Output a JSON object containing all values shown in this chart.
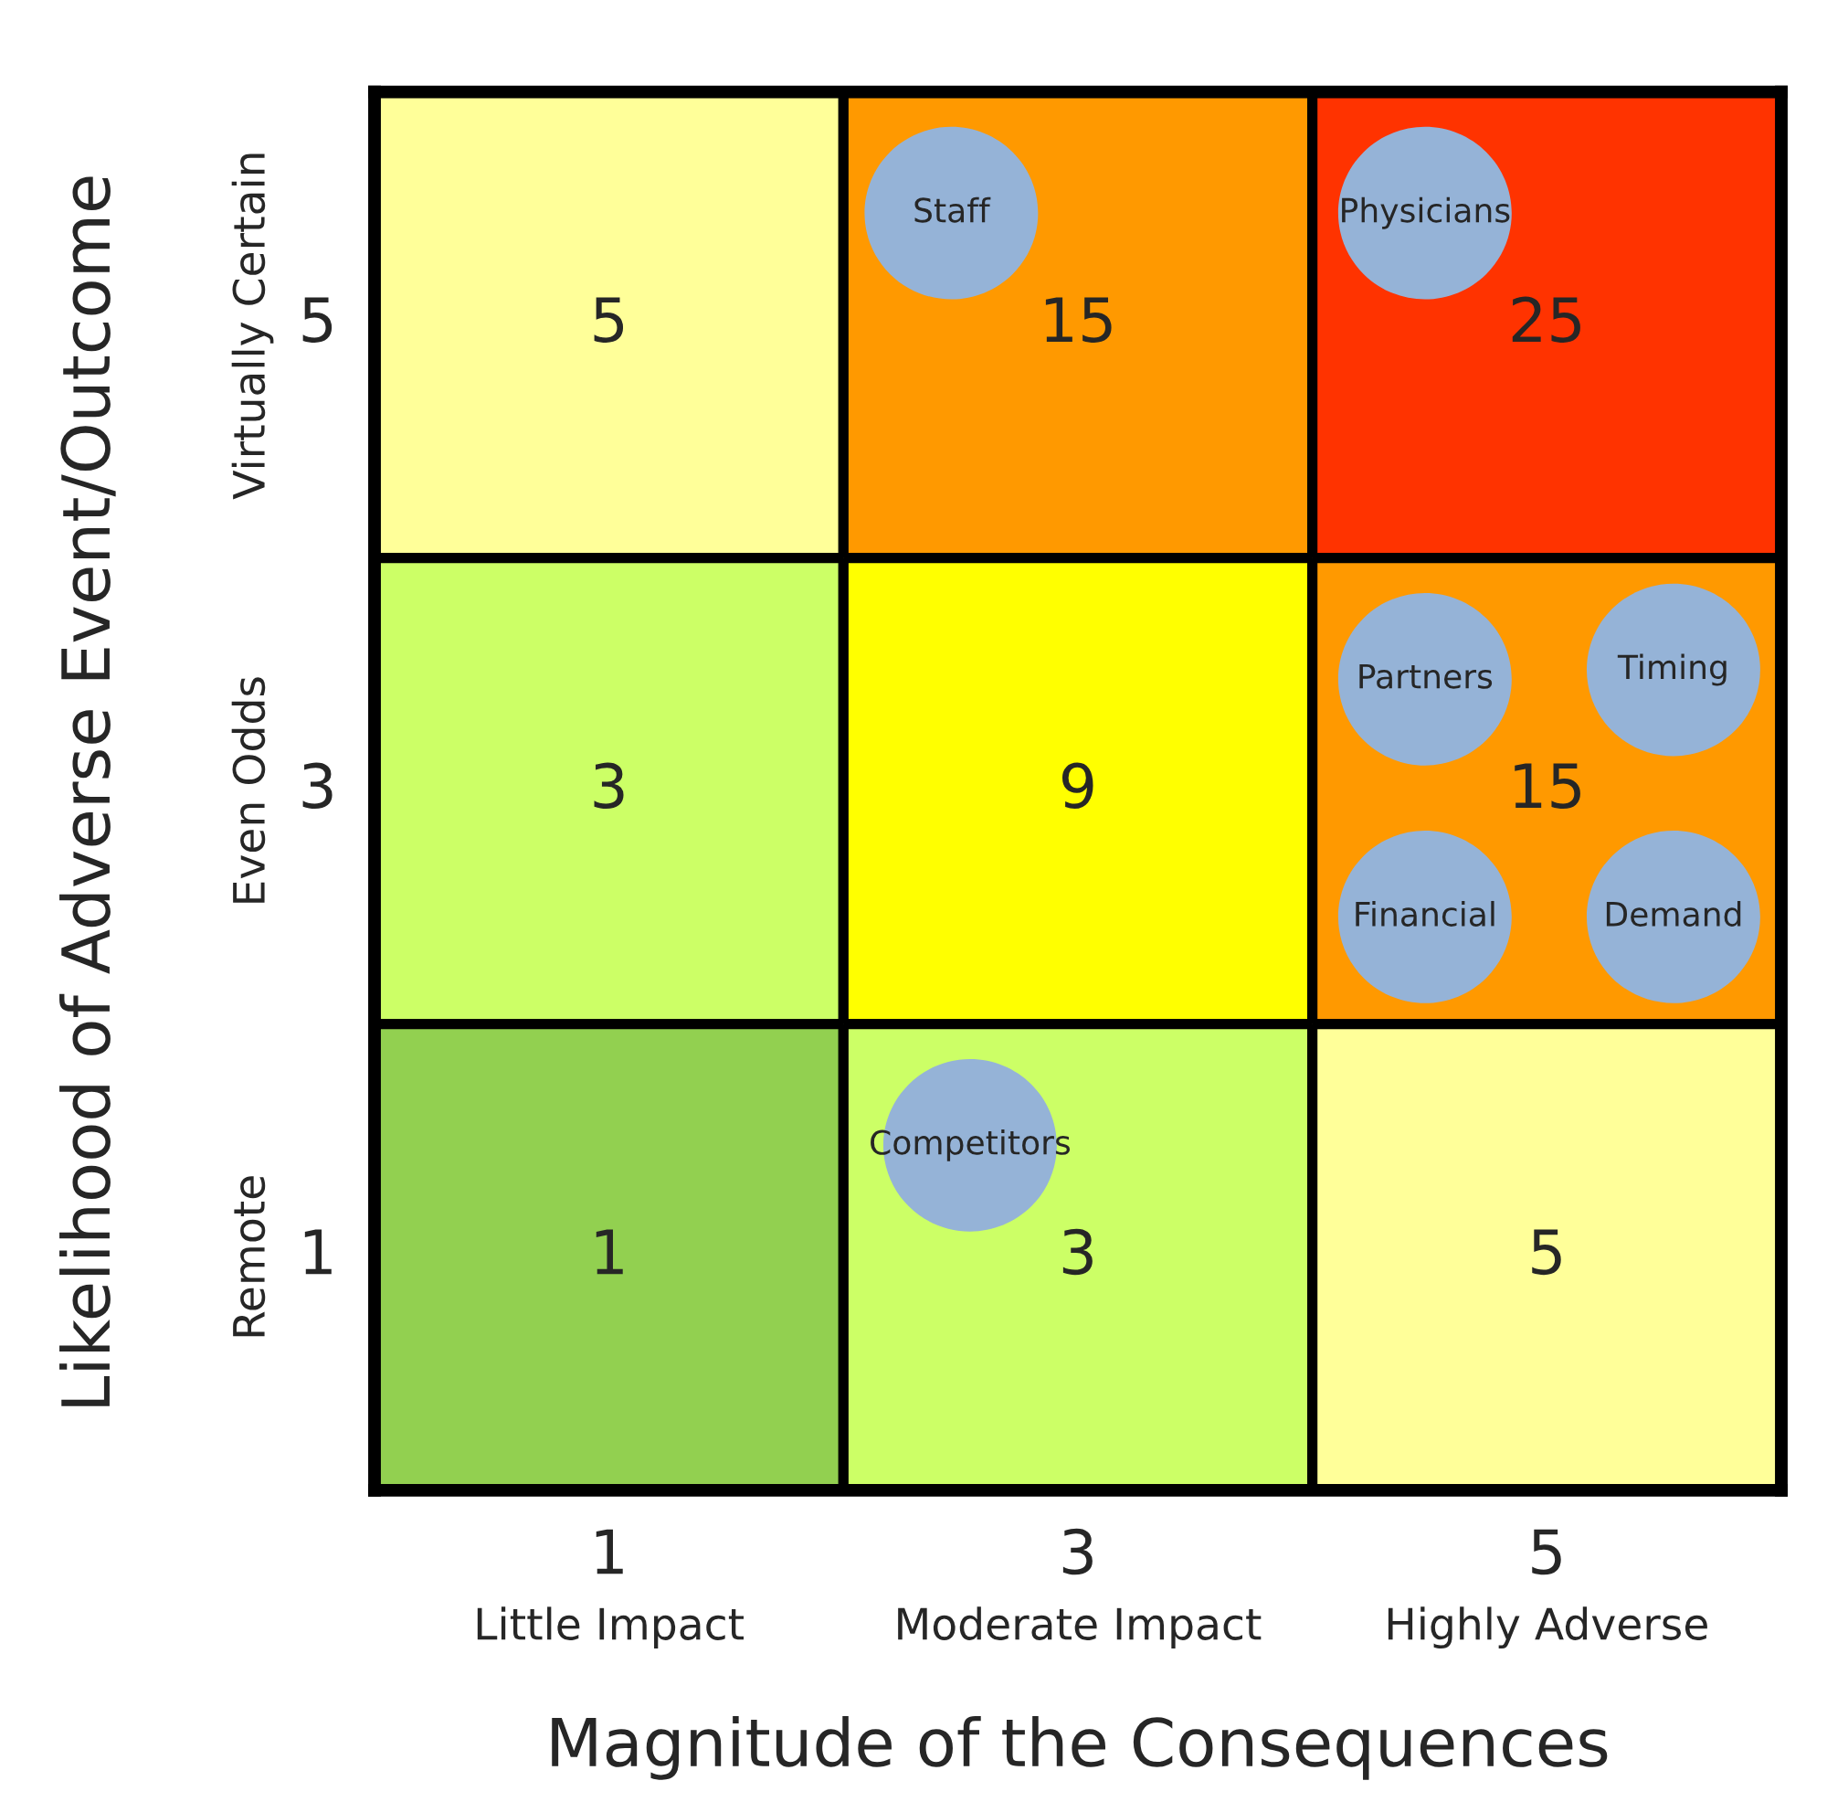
{
  "chart_data": {
    "type": "heatmap",
    "xlabel": "Magnitude of the Consequences",
    "ylabel": "Likelihood of Adverse Event/Outcome",
    "categories": [
      "1\nLittle Impact",
      "3\nModerate Impact",
      "5\nHighly Adverse"
    ],
    "y_categories": [
      "5\nVirtually Certain",
      "3\nEven Odds",
      "1\nRemote"
    ],
    "cells": [
      [
        5,
        15,
        25
      ],
      [
        3,
        9,
        15
      ],
      [
        1,
        3,
        5
      ]
    ],
    "colors": [
      "#ffff99",
      "#ff9900",
      "#ff3300",
      "#ccff66",
      "#ffff00",
      "#ff9900",
      "#92d050",
      "#ccff66",
      "#ffff99"
    ],
    "data_labels": true,
    "annotations": [
      "Staff",
      "Physicians",
      "Partners",
      "Timing",
      "Financial",
      "Demand",
      "Competitors"
    ]
  }
}
